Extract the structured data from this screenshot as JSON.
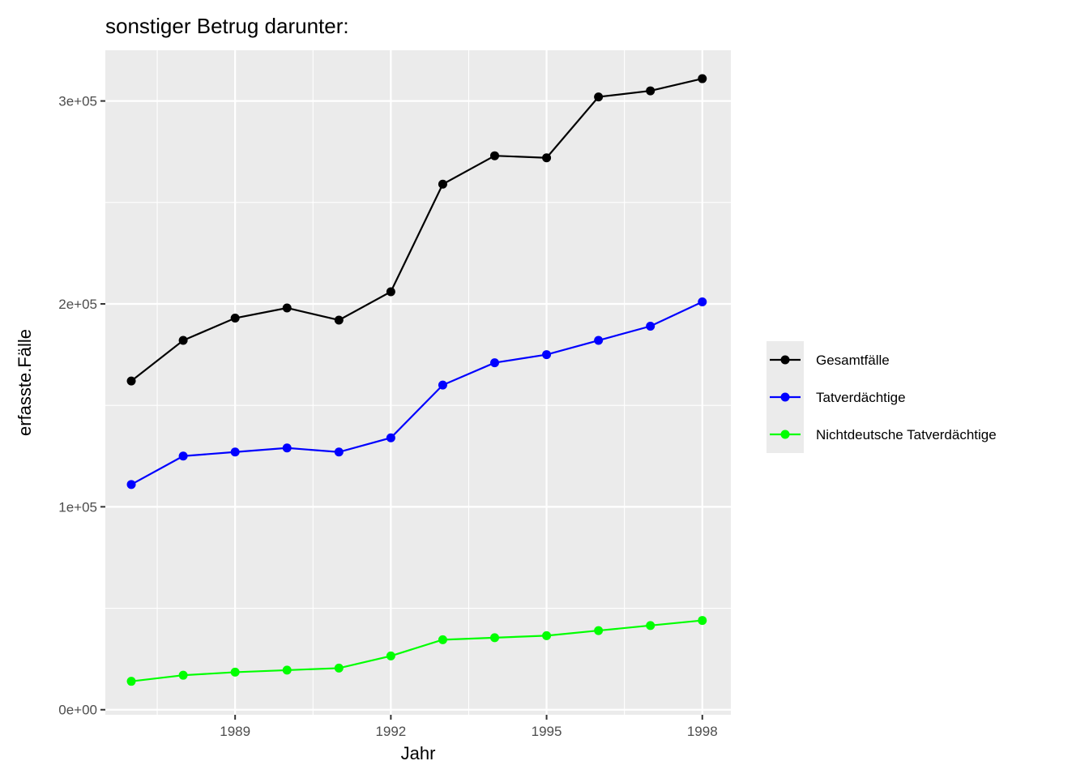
{
  "chart_data": {
    "type": "line",
    "title": "sonstiger Betrug darunter:",
    "xlabel": "Jahr",
    "ylabel": "erfasste.Fälle",
    "x": [
      1987,
      1988,
      1989,
      1990,
      1991,
      1992,
      1993,
      1994,
      1995,
      1996,
      1997,
      1998
    ],
    "xlim": [
      1986.5,
      1998.55
    ],
    "ylim": [
      -2500,
      325000
    ],
    "x_ticks": [
      1989,
      1992,
      1995,
      1998
    ],
    "x_tick_labels": [
      "1989",
      "1992",
      "1995",
      "1998"
    ],
    "y_ticks": [
      0,
      100000,
      200000,
      300000
    ],
    "y_tick_labels": [
      "0e+00",
      "1e+05",
      "2e+05",
      "3e+05"
    ],
    "grid": true,
    "legend_position": "right",
    "background": "#ebebeb",
    "series": [
      {
        "name": "Gesamtfälle",
        "color": "#000000",
        "values": [
          162000,
          182000,
          193000,
          198000,
          192000,
          206000,
          259000,
          273000,
          272000,
          302000,
          305000,
          311000
        ]
      },
      {
        "name": "Tatverdächtige",
        "color": "#0000ff",
        "values": [
          111000,
          125000,
          127000,
          129000,
          127000,
          134000,
          160000,
          171000,
          175000,
          182000,
          189000,
          201000
        ]
      },
      {
        "name": "Nichtdeutsche Tatverdächtige",
        "color": "#00ff00",
        "values": [
          14000,
          17000,
          18500,
          19500,
          20500,
          26500,
          34500,
          35500,
          36500,
          39000,
          41500,
          44000
        ]
      }
    ]
  }
}
